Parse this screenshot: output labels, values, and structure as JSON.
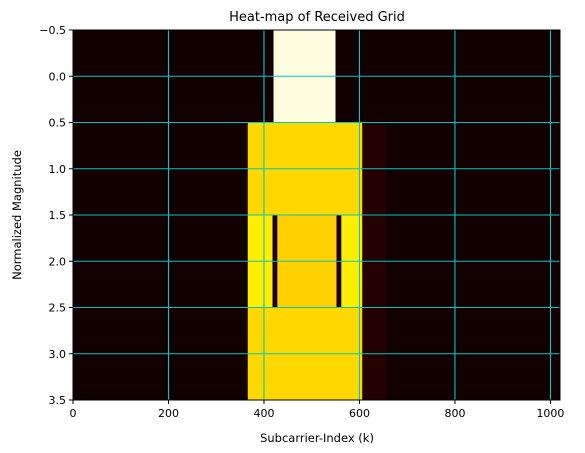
{
  "chart_data": {
    "type": "heatmap",
    "title": "Heat-map of Received Grid",
    "xlabel": "Subcarrier-Index (k)",
    "ylabel": "Normalized Magnitude",
    "xlim": [
      0,
      1020
    ],
    "ylim": [
      3.5,
      -0.5
    ],
    "x_ticks": [
      0,
      200,
      400,
      600,
      800,
      1000
    ],
    "y_ticks": [
      -0.5,
      0.0,
      0.5,
      1.0,
      1.5,
      2.0,
      2.5,
      3.0,
      3.5
    ],
    "x_tick_labels": [
      "0",
      "200",
      "400",
      "600",
      "800",
      "1000"
    ],
    "y_tick_labels": [
      "−0.5",
      "0.0",
      "0.5",
      "1.0",
      "1.5",
      "2.0",
      "2.5",
      "3.0",
      "3.5"
    ],
    "grid": true,
    "colormap": "hot",
    "background_color": "#120000",
    "grid_color": "#00c8c8",
    "rows": [
      {
        "row": 0,
        "segments": [
          {
            "k_start": 0,
            "k_end": 420,
            "color": "#120000"
          },
          {
            "k_start": 420,
            "k_end": 550,
            "color": "#fffde0"
          },
          {
            "k_start": 550,
            "k_end": 1020,
            "color": "#120000"
          }
        ]
      },
      {
        "row": 1,
        "segments": [
          {
            "k_start": 0,
            "k_end": 366,
            "color": "#120000"
          },
          {
            "k_start": 366,
            "k_end": 606,
            "color": "#ffd800"
          },
          {
            "k_start": 606,
            "k_end": 656,
            "color": "#240000"
          },
          {
            "k_start": 656,
            "k_end": 1020,
            "color": "#120000"
          }
        ]
      },
      {
        "row": 2,
        "segments": [
          {
            "k_start": 0,
            "k_end": 366,
            "color": "#120000"
          },
          {
            "k_start": 366,
            "k_end": 418,
            "color": "#ffee00"
          },
          {
            "k_start": 418,
            "k_end": 428,
            "color": "#1a0000"
          },
          {
            "k_start": 428,
            "k_end": 552,
            "color": "#ffd000"
          },
          {
            "k_start": 552,
            "k_end": 562,
            "color": "#1a0000"
          },
          {
            "k_start": 562,
            "k_end": 606,
            "color": "#ffee00"
          },
          {
            "k_start": 606,
            "k_end": 656,
            "color": "#240000"
          },
          {
            "k_start": 656,
            "k_end": 1020,
            "color": "#120000"
          }
        ]
      },
      {
        "row": 3,
        "segments": [
          {
            "k_start": 0,
            "k_end": 366,
            "color": "#120000"
          },
          {
            "k_start": 366,
            "k_end": 606,
            "color": "#ffd800"
          },
          {
            "k_start": 606,
            "k_end": 656,
            "color": "#240000"
          },
          {
            "k_start": 656,
            "k_end": 1020,
            "color": "#120000"
          }
        ]
      }
    ]
  }
}
